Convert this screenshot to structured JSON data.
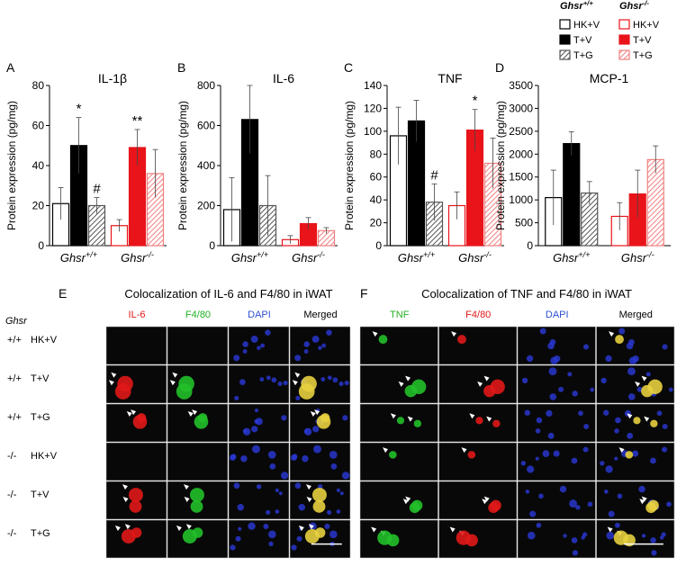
{
  "legend": [
    {
      "title": "Ghsr+/+",
      "items": [
        {
          "name": "HK+V",
          "color": "#000000",
          "style": "outline"
        },
        {
          "name": "T+V",
          "color": "#000000",
          "style": "solid"
        },
        {
          "name": "T+G",
          "color": "#555555",
          "style": "hatch"
        }
      ]
    },
    {
      "title": "Ghsr-/-",
      "items": [
        {
          "name": "HK+V",
          "color": "#e8141a",
          "style": "outline"
        },
        {
          "name": "T+V",
          "color": "#e8141a",
          "style": "solid"
        },
        {
          "name": "T+G",
          "color": "#f08080",
          "style": "hatch"
        }
      ]
    }
  ],
  "chart_data": [
    {
      "type": "bar",
      "panel": "A",
      "title": "IL-1β",
      "y_label": "Protein expression (pg/mg)",
      "categories": [
        "Ghsr+/+",
        "Ghsr-/-"
      ],
      "values": [
        [
          21,
          50,
          20
        ],
        [
          10,
          49,
          36
        ]
      ],
      "errors": [
        [
          8,
          14,
          4
        ],
        [
          3,
          9,
          12
        ]
      ],
      "annotations": [
        [
          null,
          "*",
          "#"
        ],
        [
          null,
          "**",
          null
        ]
      ],
      "ylim": [
        0,
        80
      ],
      "yticks": [
        0,
        20,
        40,
        60,
        80
      ]
    },
    {
      "type": "bar",
      "panel": "B",
      "title": "IL-6",
      "y_label": "Protein expression (pg/mg)",
      "categories": [
        "Ghsr+/+",
        "Ghsr-/-"
      ],
      "values": [
        [
          180,
          630,
          200
        ],
        [
          30,
          110,
          75
        ]
      ],
      "errors": [
        [
          160,
          170,
          150
        ],
        [
          20,
          30,
          15
        ]
      ],
      "ylim": [
        0,
        800
      ],
      "yticks": [
        0,
        200,
        400,
        600,
        800
      ]
    },
    {
      "type": "bar",
      "panel": "C",
      "title": "TNF",
      "y_label": "Protein expression (pg/mg)",
      "categories": [
        "Ghsr+/+",
        "Ghsr-/-"
      ],
      "values": [
        [
          96,
          109,
          38
        ],
        [
          35,
          101,
          72
        ]
      ],
      "errors": [
        [
          25,
          18,
          16
        ],
        [
          12,
          18,
          22
        ]
      ],
      "annotations": [
        [
          null,
          null,
          "#"
        ],
        [
          null,
          "*",
          null
        ]
      ],
      "ylim": [
        0,
        140
      ],
      "yticks": [
        0,
        20,
        40,
        60,
        80,
        100,
        120,
        140
      ]
    },
    {
      "type": "bar",
      "panel": "D",
      "title": "MCP-1",
      "y_label": "Protein expression (pg/mg)",
      "categories": [
        "Ghsr+/+",
        "Ghsr-/-"
      ],
      "values": [
        [
          1050,
          2230,
          1150
        ],
        [
          640,
          1130,
          1880
        ]
      ],
      "errors": [
        [
          600,
          260,
          250
        ],
        [
          300,
          520,
          300
        ]
      ],
      "ylim": [
        0,
        3500
      ],
      "yticks": [
        0,
        500,
        1000,
        1500,
        2000,
        2500,
        3000,
        3500
      ]
    }
  ],
  "image_panels": [
    {
      "panel": "E",
      "title": "Colocalization of IL-6 and F4/80 in iWAT",
      "columns": [
        "IL-6",
        "F4/80",
        "DAPI",
        "Merged"
      ],
      "row_header": "Ghsr",
      "rows": [
        [
          "+/+",
          "HK+V"
        ],
        [
          "+/+",
          "T+V"
        ],
        [
          "+/+",
          "T+G"
        ],
        [
          "-/-",
          "HK+V"
        ],
        [
          "-/-",
          "T+V"
        ],
        [
          "-/-",
          "T+G"
        ]
      ]
    },
    {
      "panel": "F",
      "title": "Colocalization of TNF and F4/80 in iWAT",
      "columns": [
        "TNF",
        "F4/80",
        "DAPI",
        "Merged"
      ]
    }
  ]
}
